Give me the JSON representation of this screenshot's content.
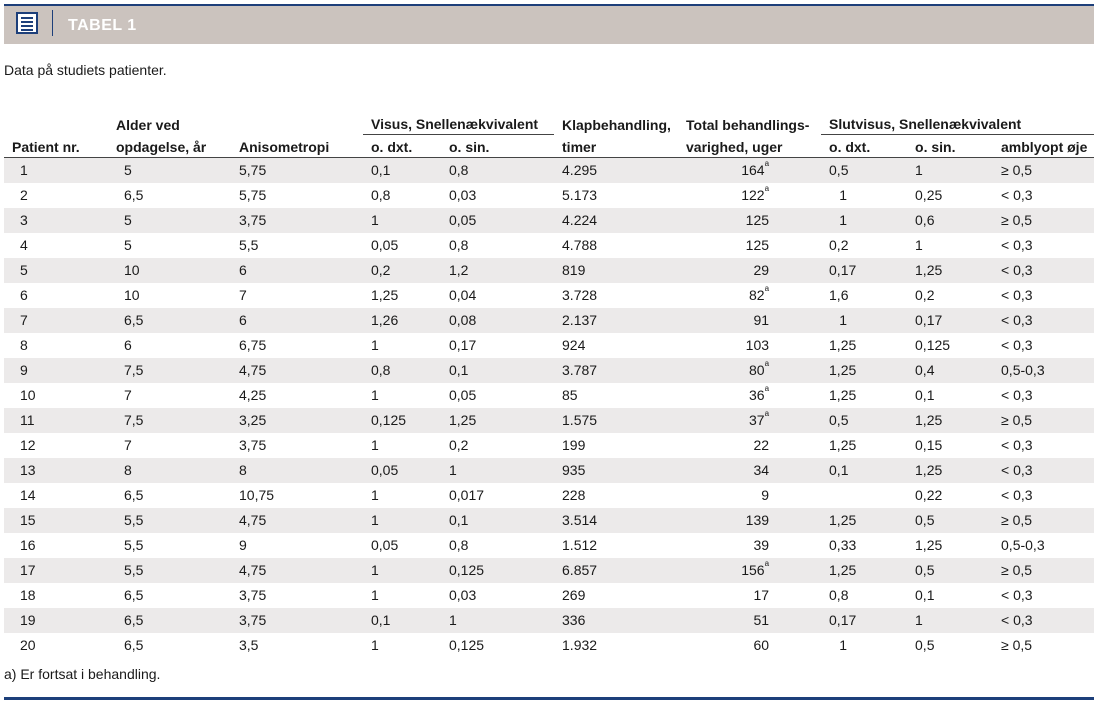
{
  "header": {
    "title": "TABEL 1",
    "icon": "document-icon"
  },
  "caption": "Data på studiets patienter.",
  "columns": {
    "patient": "Patient nr.",
    "age_1": "Alder ved",
    "age_2": "opdagelse, år",
    "aniso": "Anisometropi",
    "visus_group": "Visus, Snellenækvivalent",
    "od": "o. dxt.",
    "os": "o. sin.",
    "klap_1": "Klapbehandling,",
    "klap_2": "timer",
    "total_1": "Total behandlings-",
    "total_2": "varighed, uger",
    "slut_group": "Slutvisus, Snellenækvivalent",
    "slut_od": "o. dxt.",
    "slut_os": "o. sin.",
    "amblyopt": "amblyopt øje"
  },
  "rows": [
    [
      "1",
      "5",
      "5,75",
      "0,1",
      "0,8",
      "4.295",
      "164",
      "a",
      "0,5",
      "1",
      "≥ 0,5"
    ],
    [
      "2",
      "6,5",
      "5,75",
      "0,8",
      "0,03",
      "5.173",
      "122",
      "a",
      "1",
      "0,25",
      "< 0,3"
    ],
    [
      "3",
      "5",
      "3,75",
      "1",
      "0,05",
      "4.224",
      "125",
      "",
      "1",
      "0,6",
      "≥ 0,5"
    ],
    [
      "4",
      "5",
      "5,5",
      "0,05",
      "0,8",
      "4.788",
      "125",
      "",
      "0,2",
      "1",
      "< 0,3"
    ],
    [
      "5",
      "10",
      "6",
      "0,2",
      "1,2",
      "819",
      "29",
      "",
      "0,17",
      "1,25",
      "< 0,3"
    ],
    [
      "6",
      "10",
      "7",
      "1,25",
      "0,04",
      "3.728",
      "82",
      "a",
      "1,6",
      "0,2",
      "< 0,3"
    ],
    [
      "7",
      "6,5",
      "6",
      "1,26",
      "0,08",
      "2.137",
      "91",
      "",
      "1",
      "0,17",
      "< 0,3"
    ],
    [
      "8",
      "6",
      "6,75",
      "1",
      "0,17",
      "924",
      "103",
      "",
      "1,25",
      "0,125",
      "< 0,3"
    ],
    [
      "9",
      "7,5",
      "4,75",
      "0,8",
      "0,1",
      "3.787",
      "80",
      "a",
      "1,25",
      "0,4",
      "0,5-0,3"
    ],
    [
      "10",
      "7",
      "4,25",
      "1",
      "0,05",
      "85",
      "36",
      "a",
      "1,25",
      "0,1",
      "< 0,3"
    ],
    [
      "11",
      "7,5",
      "3,25",
      "0,125",
      "1,25",
      "1.575",
      "37",
      "a",
      "0,5",
      "1,25",
      "≥ 0,5"
    ],
    [
      "12",
      "7",
      "3,75",
      "1",
      "0,2",
      "199",
      "22",
      "",
      "1,25",
      "0,15",
      "< 0,3"
    ],
    [
      "13",
      "8",
      "8",
      "0,05",
      "1",
      "935",
      "34",
      "",
      "0,1",
      "1,25",
      "< 0,3"
    ],
    [
      "14",
      "6,5",
      "10,75",
      "1",
      "0,017",
      "228",
      "9",
      "",
      "",
      "0,22",
      "< 0,3"
    ],
    [
      "15",
      "5,5",
      "4,75",
      "1",
      "0,1",
      "3.514",
      "139",
      "",
      "1,25",
      "0,5",
      "≥ 0,5"
    ],
    [
      "16",
      "5,5",
      "9",
      "0,05",
      "0,8",
      "1.512",
      "39",
      "",
      "0,33",
      "1,25",
      "0,5-0,3"
    ],
    [
      "17",
      "5,5",
      "4,75",
      "1",
      "0,125",
      "6.857",
      "156",
      "a",
      "1,25",
      "0,5",
      "≥ 0,5"
    ],
    [
      "18",
      "6,5",
      "3,75",
      "1",
      "0,03",
      "269",
      "17",
      "",
      "0,8",
      "0,1",
      "< 0,3"
    ],
    [
      "19",
      "6,5",
      "3,75",
      "0,1",
      "1",
      "336",
      "51",
      "",
      "0,17",
      "1",
      "< 0,3"
    ],
    [
      "20",
      "6,5",
      "3,5",
      "1",
      "0,125",
      "1.932",
      "60",
      "",
      "1",
      "0,5",
      "≥ 0,5"
    ]
  ],
  "footnote": "a) Er fortsat i behandling."
}
